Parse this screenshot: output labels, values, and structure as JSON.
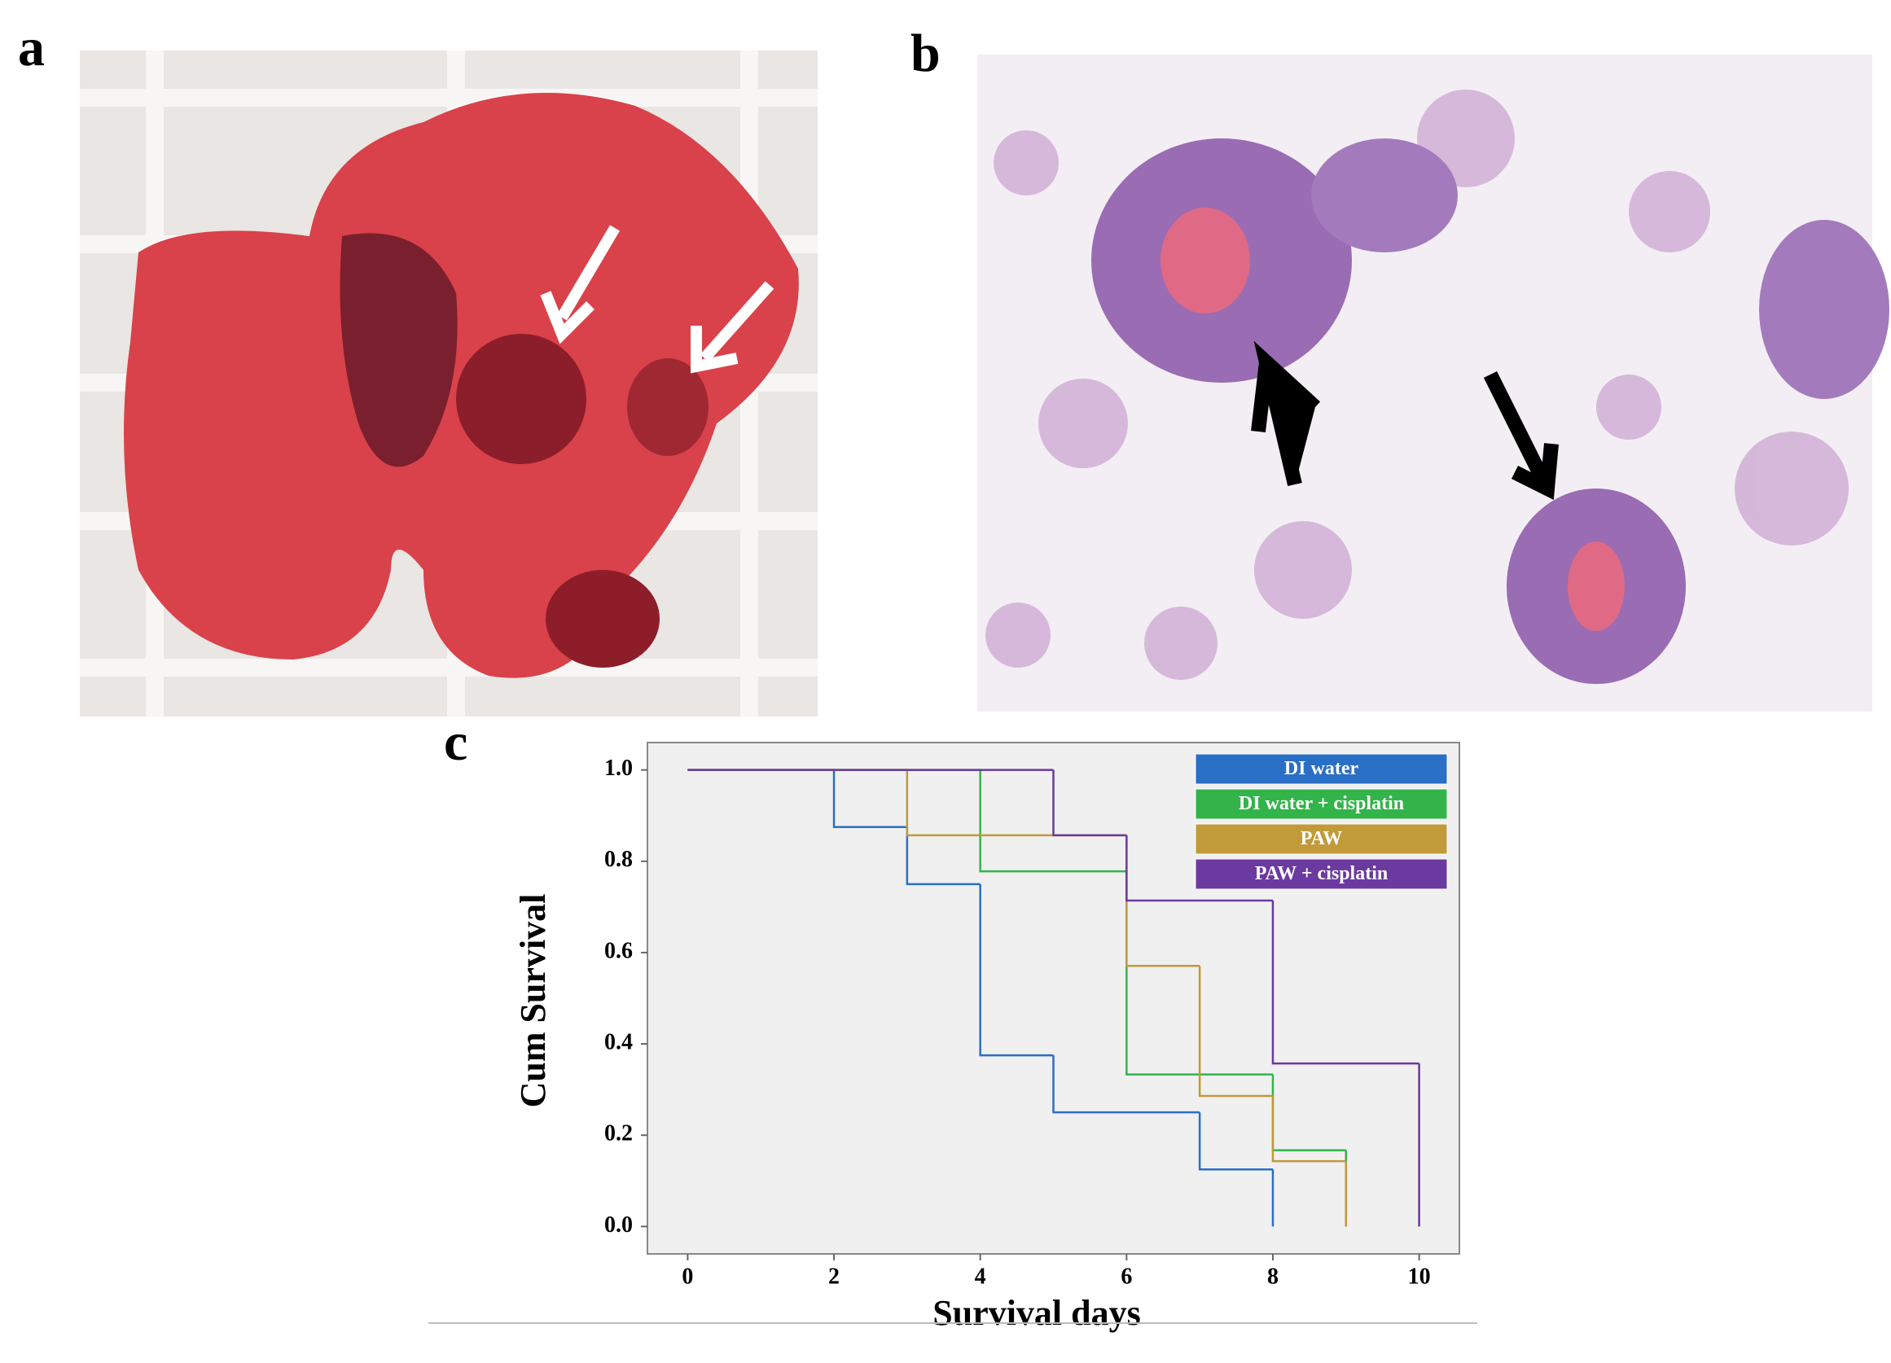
{
  "panels": {
    "a": "a",
    "b": "b",
    "c": "c"
  },
  "chart_data": {
    "type": "step",
    "x_label": "Survival days",
    "y_label": "Cum Survival",
    "xlim": [
      -0.55,
      10.55
    ],
    "ylim": [
      -0.06,
      1.06
    ],
    "xticks": [
      0,
      2,
      4,
      6,
      8,
      10
    ],
    "yticks": [
      {
        "value": 0,
        "label": "0.0"
      },
      {
        "value": 0.2,
        "label": "0.2"
      },
      {
        "value": 0.4,
        "label": "0.4"
      },
      {
        "value": 0.6,
        "label": "0.6"
      },
      {
        "value": 0.8,
        "label": "0.8"
      },
      {
        "value": 1,
        "label": "1.0"
      }
    ],
    "legend": "upper right",
    "series": [
      {
        "name": "DI water",
        "color": "#2a6fc6",
        "x": [
          0,
          2,
          3,
          4,
          5,
          7,
          8
        ],
        "values": [
          1,
          0.875,
          0.75,
          0.375,
          0.25,
          0.125,
          0
        ]
      },
      {
        "name": "DI water + cisplatin",
        "color": "#33b44a",
        "x": [
          0,
          4,
          6,
          8,
          9
        ],
        "values": [
          1,
          0.778,
          0.333,
          0.167,
          0
        ]
      },
      {
        "name": "PAW",
        "color": "#c19a3a",
        "x": [
          0,
          3,
          6,
          7,
          8,
          9
        ],
        "values": [
          1,
          0.857,
          0.571,
          0.286,
          0.143,
          0
        ]
      },
      {
        "name": "PAW + cisplatin",
        "color": "#6b3aa0",
        "x": [
          0,
          5,
          6,
          8,
          10
        ],
        "values": [
          1,
          0.857,
          0.714,
          0.357,
          0
        ]
      }
    ]
  }
}
